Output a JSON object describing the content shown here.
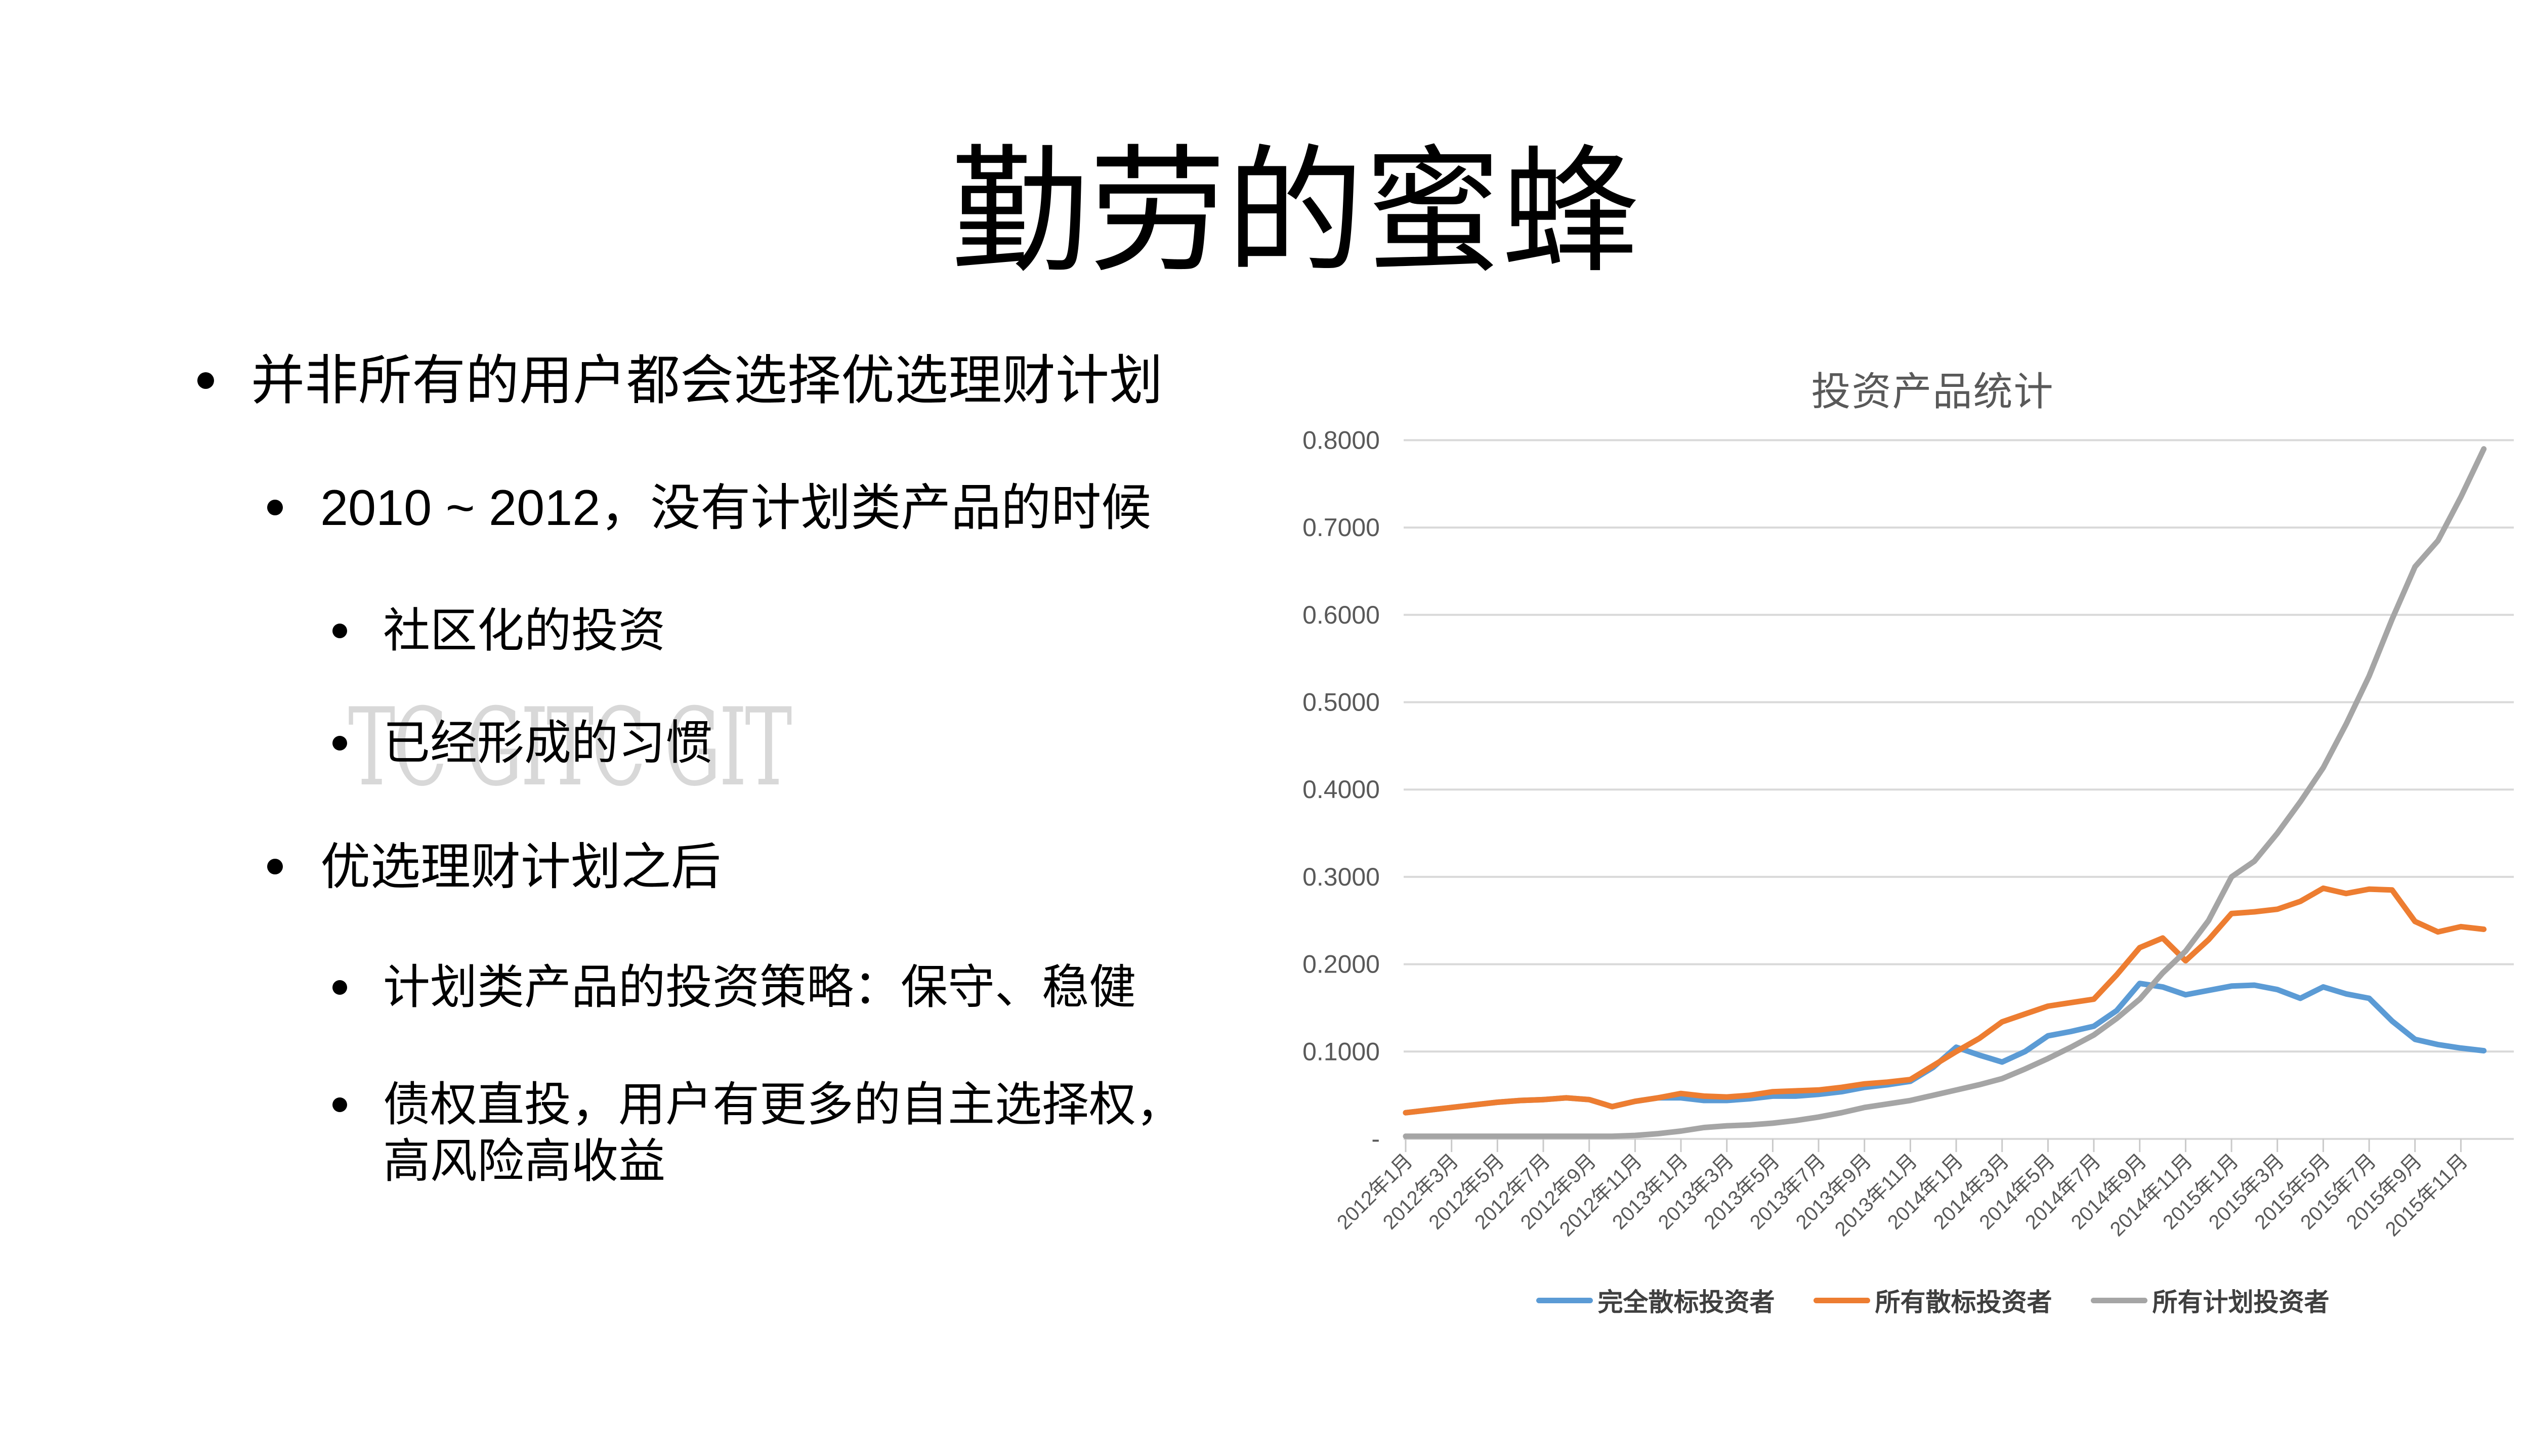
{
  "slide": {
    "title": "勤劳的蜜蜂",
    "watermark": "TC GITC GIT",
    "bullets": [
      {
        "level": 1,
        "text": "并非所有的用户都会选择优选理财计划"
      },
      {
        "level": 2,
        "text": "2010 ~ 2012，没有计划类产品的时候"
      },
      {
        "level": 3,
        "text": "社区化的投资"
      },
      {
        "level": 3,
        "text": "已经形成的习惯"
      },
      {
        "level": 2,
        "text": "优选理财计划之后"
      },
      {
        "level": 3,
        "text": "计划类产品的投资策略：保守、稳健"
      },
      {
        "level": 3,
        "text": "债权直投，用户有更多的自主选择权，高风险高收益"
      }
    ]
  },
  "chart_data": {
    "type": "line",
    "title": "投资产品统计",
    "xlabel": "",
    "ylabel": "",
    "ylim": [
      0,
      0.8
    ],
    "grid": "horizontal",
    "legend_position": "bottom",
    "axis_color": "#595959",
    "gridline_color": "#D9D9D9",
    "x_frequency": "monthly",
    "x_start": "2012年1月",
    "x_end": "2015年12月",
    "label_every_n_months": 2,
    "x_tick_labels": [
      "2012年1月",
      "2012年3月",
      "2012年5月",
      "2012年7月",
      "2012年9月",
      "2012年11月",
      "2013年1月",
      "2013年3月",
      "2013年5月",
      "2013年7月",
      "2013年9月",
      "2013年11月",
      "2014年1月",
      "2014年3月",
      "2014年5月",
      "2014年7月",
      "2014年9月",
      "2014年11月",
      "2015年1月",
      "2015年3月",
      "2015年5月",
      "2015年7月",
      "2015年9月",
      "2015年11月"
    ],
    "y_tick_labels": [
      "0.8000",
      "0.7000",
      "0.6000",
      "0.5000",
      "0.4000",
      "0.3000",
      "0.2000",
      "0.1000",
      "-"
    ],
    "series": [
      {
        "name": "完全散标投资者",
        "color": "#5B9BD5",
        "values": [
          0.03,
          0.033,
          0.036,
          0.039,
          0.042,
          0.044,
          0.045,
          0.047,
          0.045,
          0.037,
          0.043,
          0.047,
          0.047,
          0.044,
          0.044,
          0.046,
          0.049,
          0.049,
          0.051,
          0.054,
          0.059,
          0.062,
          0.066,
          0.082,
          0.105,
          0.096,
          0.088,
          0.1,
          0.118,
          0.123,
          0.129,
          0.147,
          0.178,
          0.174,
          0.165,
          0.17,
          0.175,
          0.176,
          0.171,
          0.161,
          0.174,
          0.166,
          0.161,
          0.135,
          0.114,
          0.108,
          0.104,
          0.101
        ]
      },
      {
        "name": "所有散标投资者",
        "color": "#ED7D31",
        "values": [
          0.03,
          0.033,
          0.036,
          0.039,
          0.042,
          0.044,
          0.045,
          0.047,
          0.045,
          0.037,
          0.043,
          0.047,
          0.052,
          0.049,
          0.048,
          0.05,
          0.054,
          0.055,
          0.056,
          0.059,
          0.063,
          0.065,
          0.068,
          0.084,
          0.1,
          0.115,
          0.134,
          0.143,
          0.152,
          0.156,
          0.16,
          0.188,
          0.219,
          0.23,
          0.204,
          0.228,
          0.258,
          0.26,
          0.263,
          0.272,
          0.287,
          0.281,
          0.286,
          0.285,
          0.249,
          0.237,
          0.243,
          0.24
        ]
      },
      {
        "name": "所有计划投资者",
        "color": "#A5A5A5",
        "values": [
          0.003,
          0.003,
          0.003,
          0.003,
          0.003,
          0.003,
          0.003,
          0.003,
          0.003,
          0.003,
          0.004,
          0.006,
          0.009,
          0.013,
          0.015,
          0.016,
          0.018,
          0.021,
          0.025,
          0.03,
          0.036,
          0.04,
          0.044,
          0.05,
          0.056,
          0.062,
          0.069,
          0.08,
          0.092,
          0.105,
          0.119,
          0.138,
          0.16,
          0.19,
          0.215,
          0.25,
          0.3,
          0.318,
          0.35,
          0.386,
          0.425,
          0.475,
          0.53,
          0.595,
          0.655,
          0.685,
          0.735,
          0.79
        ]
      }
    ]
  }
}
